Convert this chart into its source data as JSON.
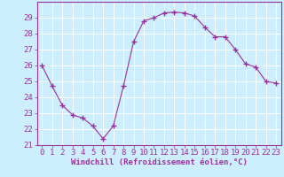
{
  "x": [
    0,
    1,
    2,
    3,
    4,
    5,
    6,
    7,
    8,
    9,
    10,
    11,
    12,
    13,
    14,
    15,
    16,
    17,
    18,
    19,
    20,
    21,
    22,
    23
  ],
  "y": [
    26.0,
    24.7,
    23.5,
    22.9,
    22.7,
    22.2,
    21.4,
    22.2,
    24.7,
    27.5,
    28.8,
    29.0,
    29.3,
    29.35,
    29.3,
    29.1,
    28.4,
    27.8,
    27.8,
    27.0,
    26.1,
    25.9,
    25.0,
    24.9
  ],
  "line_color": "#993399",
  "marker": "+",
  "marker_size": 4,
  "bg_color": "#cceeff",
  "grid_color": "#ffffff",
  "xlabel": "Windchill (Refroidissement éolien,°C)",
  "ylabel": "",
  "title": "",
  "xlim": [
    -0.5,
    23.5
  ],
  "ylim": [
    21.0,
    30.0
  ],
  "yticks": [
    21,
    22,
    23,
    24,
    25,
    26,
    27,
    28,
    29
  ],
  "xticks": [
    0,
    1,
    2,
    3,
    4,
    5,
    6,
    7,
    8,
    9,
    10,
    11,
    12,
    13,
    14,
    15,
    16,
    17,
    18,
    19,
    20,
    21,
    22,
    23
  ],
  "tick_color": "#993399",
  "label_color": "#993399",
  "xlabel_fontsize": 6.5,
  "tick_fontsize": 6.5
}
